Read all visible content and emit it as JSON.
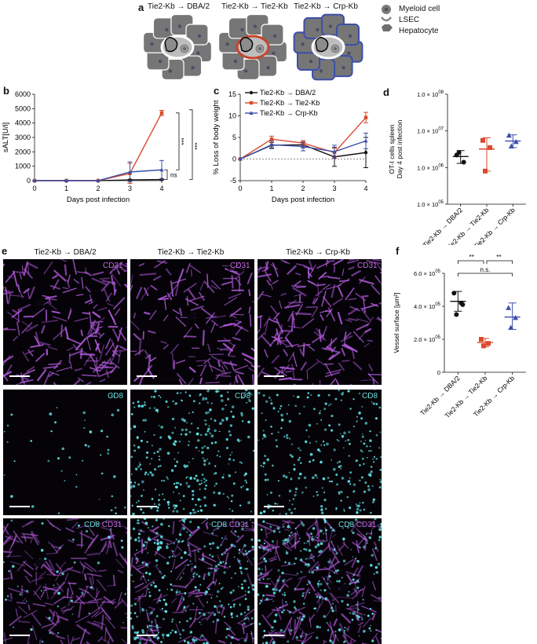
{
  "panel_a": {
    "letter": "a",
    "titles": [
      "Tie2-Kb → DBA/2",
      "Tie2-Kb → Tie2-Kb",
      "Tie2-Kb → Crp-Kb"
    ],
    "legend": [
      "Myeloid cell",
      "LSEC",
      "Hepatocyte"
    ],
    "colors": {
      "hepatocyte": "#7a7a7a",
      "lsec_normal": "#ffffff",
      "lsec_red": "#c8442e",
      "border_blue": "#3c4fa8"
    }
  },
  "panel_b": {
    "letter": "b",
    "sig": [
      "***",
      "***",
      "ns"
    ]
  },
  "panel_c": {
    "letter": "c"
  },
  "panel_d": {
    "letter": "d"
  },
  "panel_e": {
    "letter": "e",
    "columns": [
      "Tie2-Kb → DBA/2",
      "Tie2-Kb → Tie2-Kb",
      "Tie2-Kb → Crp-Kb"
    ],
    "row_labels": {
      "cd31": "CD31",
      "cd8": "CD8",
      "merge_cd8": "CD8",
      "merge_cd31": "CD31"
    }
  },
  "panel_f": {
    "letter": "f",
    "sig": [
      "**",
      "**",
      "n.s."
    ]
  },
  "chart_data": [
    {
      "id": "b",
      "type": "line",
      "xlabel": "Days post infection",
      "ylabel": "sALT[U/l]",
      "x": [
        0,
        1,
        2,
        3,
        4
      ],
      "xlim": [
        0,
        4
      ],
      "ylim": [
        0,
        6000
      ],
      "yticks": [
        0,
        1000,
        2000,
        3000,
        4000,
        5000,
        6000
      ],
      "series": [
        {
          "color": "#111111",
          "values": [
            0,
            0,
            0,
            50,
            80
          ],
          "err": [
            0,
            0,
            0,
            30,
            40
          ]
        },
        {
          "color": "#d94a2c",
          "values": [
            0,
            0,
            0,
            500,
            4700
          ],
          "err": [
            0,
            0,
            0,
            700,
            180
          ]
        },
        {
          "color": "#3c4fa8",
          "values": [
            0,
            0,
            0,
            600,
            750
          ],
          "err": [
            0,
            0,
            0,
            700,
            650
          ]
        }
      ]
    },
    {
      "id": "c",
      "type": "line",
      "xlabel": "Days post infection",
      "ylabel": "% Loss of body weight",
      "x": [
        0,
        1,
        2,
        3,
        4
      ],
      "xlim": [
        0,
        4
      ],
      "ylim": [
        -5,
        15
      ],
      "yticks": [
        -5,
        0,
        5,
        10,
        15
      ],
      "series": [
        {
          "name": "Tie2-Kb → DBA/2",
          "color": "#111111",
          "values": [
            0,
            3.2,
            3.3,
            0.5,
            1.5
          ],
          "err": [
            0,
            0.6,
            0.7,
            2.2,
            3.5
          ]
        },
        {
          "name": "Tie2-Kb → Tie2-Kb",
          "color": "#d94a2c",
          "values": [
            0,
            4.6,
            3.7,
            1.5,
            9.6
          ],
          "err": [
            0,
            0.7,
            0.6,
            1.0,
            1.2
          ]
        },
        {
          "name": "Tie2-Kb → Crp-Kb",
          "color": "#3c4fa8",
          "values": [
            0,
            3.3,
            2.9,
            1.7,
            4.2
          ],
          "err": [
            0,
            0.9,
            1.0,
            1.5,
            1.8
          ]
        }
      ]
    },
    {
      "id": "d",
      "type": "scatter",
      "ylabel_lines": [
        "OT-I cells spleen",
        "Day 4 post infection"
      ],
      "log_y": true,
      "yticks": [
        "1.0 × 10^05",
        "1.0 × 10^06",
        "1.0 × 10^07",
        "1.0 × 10^08"
      ],
      "ylim_exp": [
        5,
        8
      ],
      "categories": [
        "Tie2-Kb → DBA/2",
        "Tie2-Kb → Tie2-Kb",
        "Tie2-Kb → Crp-Kb"
      ],
      "groups": [
        {
          "color": "#111111",
          "marker": "circle",
          "points": [
            2200000.0,
            1400000.0,
            2600000.0
          ],
          "mean": 2000000.0,
          "sd_low": 1300000.0,
          "sd_high": 2900000.0
        },
        {
          "color": "#d94a2c",
          "marker": "square",
          "points": [
            5500000.0,
            3500000.0,
            800000.0
          ],
          "mean": 3200000.0,
          "sd_low": 800000.0,
          "sd_high": 6500000.0
        },
        {
          "color": "#3c4fa8",
          "marker": "triangle",
          "points": [
            7500000.0,
            5000000.0,
            3800000.0
          ],
          "mean": 5300000.0,
          "sd_low": 3500000.0,
          "sd_high": 7800000.0
        }
      ]
    },
    {
      "id": "f",
      "type": "scatter",
      "ylabel": "Vessel surface [µm²]",
      "yticks": [
        "0",
        "2.0 × 10^05",
        "4.0 × 10^05",
        "6.0 × 10^05"
      ],
      "ylim": [
        0,
        600000
      ],
      "categories": [
        "Tie2-Kb → DBA/2",
        "Tie2-Kb → Tie2-Kb",
        "Tie2-Kb → Crp-Kb"
      ],
      "groups": [
        {
          "color": "#111111",
          "marker": "circle",
          "points": [
            480000,
            420000,
            350000,
            410000
          ],
          "mean": 430000,
          "sd_low": 370000,
          "sd_high": 490000
        },
        {
          "color": "#d94a2c",
          "marker": "square",
          "points": [
            200000,
            175000,
            160000
          ],
          "mean": 180000,
          "sd_low": 155000,
          "sd_high": 205000
        },
        {
          "color": "#3c4fa8",
          "marker": "triangle",
          "points": [
            390000,
            330000,
            270000
          ],
          "mean": 335000,
          "sd_low": 260000,
          "sd_high": 420000
        }
      ]
    }
  ]
}
